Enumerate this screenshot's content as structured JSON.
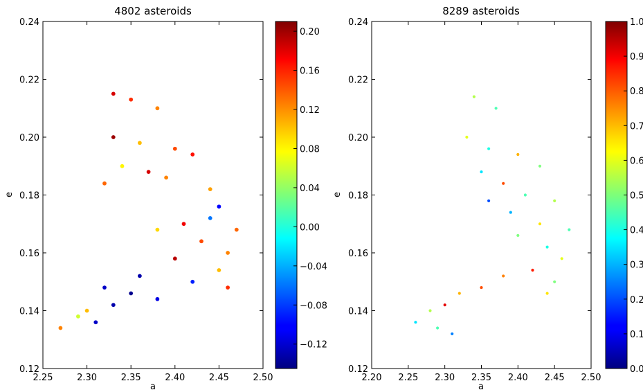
{
  "chart_data": [
    {
      "type": "scatter",
      "title": "4802 asteroids",
      "xlabel": "a",
      "ylabel": "e",
      "xlim": [
        2.25,
        2.5
      ],
      "ylim": [
        0.12,
        0.24
      ],
      "xticks": [
        "2.25",
        "2.30",
        "2.35",
        "2.40",
        "2.45",
        "2.50"
      ],
      "yticks": [
        "0.12",
        "0.14",
        "0.16",
        "0.18",
        "0.20",
        "0.22",
        "0.24"
      ],
      "colorbar": {
        "colormap": "jet",
        "range": [
          -0.145,
          0.21
        ],
        "ticks": [
          "−0.12",
          "−0.08",
          "−0.04",
          "0.00",
          "0.04",
          "0.08",
          "0.12",
          "0.16",
          "0.20"
        ]
      },
      "grid": false,
      "points": [
        {
          "a": 2.33,
          "e": 0.215,
          "c": 0.18
        },
        {
          "a": 2.35,
          "e": 0.213,
          "c": 0.15
        },
        {
          "a": 2.38,
          "e": 0.21,
          "c": 0.12
        },
        {
          "a": 2.33,
          "e": 0.2,
          "c": 0.2
        },
        {
          "a": 2.36,
          "e": 0.198,
          "c": 0.1
        },
        {
          "a": 2.4,
          "e": 0.196,
          "c": 0.14
        },
        {
          "a": 2.42,
          "e": 0.194,
          "c": 0.16
        },
        {
          "a": 2.34,
          "e": 0.19,
          "c": 0.08
        },
        {
          "a": 2.37,
          "e": 0.188,
          "c": 0.18
        },
        {
          "a": 2.39,
          "e": 0.186,
          "c": 0.12
        },
        {
          "a": 2.32,
          "e": 0.184,
          "c": 0.13
        },
        {
          "a": 2.44,
          "e": 0.182,
          "c": 0.11
        },
        {
          "a": 2.45,
          "e": 0.176,
          "c": -0.1
        },
        {
          "a": 2.44,
          "e": 0.172,
          "c": -0.06
        },
        {
          "a": 2.41,
          "e": 0.17,
          "c": 0.17
        },
        {
          "a": 2.38,
          "e": 0.168,
          "c": 0.09
        },
        {
          "a": 2.43,
          "e": 0.164,
          "c": 0.14
        },
        {
          "a": 2.46,
          "e": 0.16,
          "c": 0.12
        },
        {
          "a": 2.4,
          "e": 0.158,
          "c": 0.19
        },
        {
          "a": 2.45,
          "e": 0.154,
          "c": 0.1
        },
        {
          "a": 2.36,
          "e": 0.152,
          "c": -0.13
        },
        {
          "a": 2.32,
          "e": 0.148,
          "c": -0.12
        },
        {
          "a": 2.35,
          "e": 0.146,
          "c": -0.14
        },
        {
          "a": 2.38,
          "e": 0.144,
          "c": -0.11
        },
        {
          "a": 2.33,
          "e": 0.142,
          "c": -0.13
        },
        {
          "a": 2.3,
          "e": 0.14,
          "c": 0.1
        },
        {
          "a": 2.29,
          "e": 0.138,
          "c": 0.06
        },
        {
          "a": 2.27,
          "e": 0.134,
          "c": 0.12
        },
        {
          "a": 2.31,
          "e": 0.136,
          "c": -0.12
        },
        {
          "a": 2.42,
          "e": 0.15,
          "c": -0.09
        },
        {
          "a": 2.46,
          "e": 0.148,
          "c": 0.15
        },
        {
          "a": 2.47,
          "e": 0.168,
          "c": 0.13
        }
      ]
    },
    {
      "type": "scatter",
      "title": "8289 asteroids",
      "xlabel": "a",
      "ylabel": "e",
      "xlim": [
        2.2,
        2.5
      ],
      "ylim": [
        0.12,
        0.24
      ],
      "xticks": [
        "2.20",
        "2.25",
        "2.30",
        "2.35",
        "2.40",
        "2.45",
        "2.50"
      ],
      "yticks": [
        "0.12",
        "0.14",
        "0.16",
        "0.18",
        "0.20",
        "0.22",
        "0.24"
      ],
      "colorbar": {
        "colormap": "jet",
        "range": [
          0.0,
          1.0
        ],
        "ticks": [
          "0.0",
          "0.1",
          "0.2",
          "0.3",
          "0.4",
          "0.5",
          "0.6",
          "0.7",
          "0.8",
          "0.9",
          "1.0"
        ]
      },
      "grid": false,
      "points": [
        {
          "a": 2.34,
          "e": 0.214,
          "c": 0.55
        },
        {
          "a": 2.37,
          "e": 0.21,
          "c": 0.45
        },
        {
          "a": 2.33,
          "e": 0.2,
          "c": 0.6
        },
        {
          "a": 2.36,
          "e": 0.196,
          "c": 0.4
        },
        {
          "a": 2.4,
          "e": 0.194,
          "c": 0.7
        },
        {
          "a": 2.43,
          "e": 0.19,
          "c": 0.5
        },
        {
          "a": 2.35,
          "e": 0.188,
          "c": 0.35
        },
        {
          "a": 2.38,
          "e": 0.184,
          "c": 0.8
        },
        {
          "a": 2.41,
          "e": 0.18,
          "c": 0.45
        },
        {
          "a": 2.45,
          "e": 0.178,
          "c": 0.55
        },
        {
          "a": 2.39,
          "e": 0.174,
          "c": 0.3
        },
        {
          "a": 2.43,
          "e": 0.17,
          "c": 0.65
        },
        {
          "a": 2.4,
          "e": 0.166,
          "c": 0.5
        },
        {
          "a": 2.44,
          "e": 0.162,
          "c": 0.4
        },
        {
          "a": 2.46,
          "e": 0.158,
          "c": 0.6
        },
        {
          "a": 2.42,
          "e": 0.154,
          "c": 0.85
        },
        {
          "a": 2.38,
          "e": 0.152,
          "c": 0.75
        },
        {
          "a": 2.35,
          "e": 0.148,
          "c": 0.8
        },
        {
          "a": 2.32,
          "e": 0.146,
          "c": 0.7
        },
        {
          "a": 2.3,
          "e": 0.142,
          "c": 0.9
        },
        {
          "a": 2.28,
          "e": 0.14,
          "c": 0.55
        },
        {
          "a": 2.26,
          "e": 0.136,
          "c": 0.35
        },
        {
          "a": 2.29,
          "e": 0.134,
          "c": 0.45
        },
        {
          "a": 2.31,
          "e": 0.132,
          "c": 0.25
        },
        {
          "a": 2.45,
          "e": 0.15,
          "c": 0.5
        },
        {
          "a": 2.47,
          "e": 0.168,
          "c": 0.45
        },
        {
          "a": 2.36,
          "e": 0.178,
          "c": 0.2
        },
        {
          "a": 2.44,
          "e": 0.146,
          "c": 0.65
        }
      ]
    }
  ]
}
